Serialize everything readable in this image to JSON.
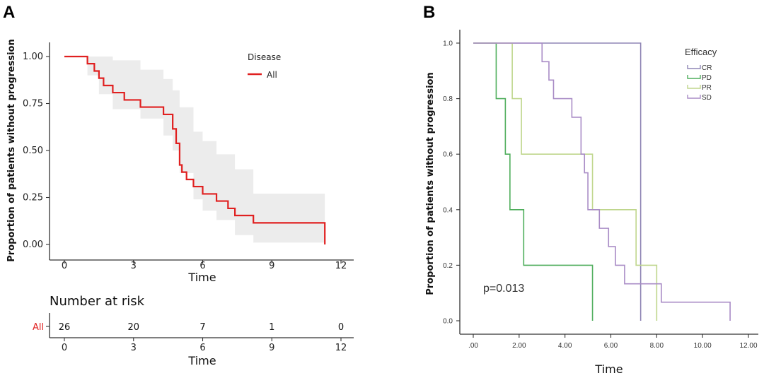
{
  "chart_data": [
    {
      "type": "line",
      "panel_label": "A",
      "xlabel": "Time",
      "ylabel": "Proportion of patients without progression",
      "xticks": [
        0,
        3,
        6,
        9,
        12
      ],
      "yticks": [
        "0.00",
        "0.25",
        "0.50",
        "0.75",
        "1.00"
      ],
      "xlim": [
        0,
        12
      ],
      "ylim": [
        0,
        1
      ],
      "legend": {
        "title": "Disease",
        "placement": "top-right",
        "entries": [
          {
            "name": "All",
            "color": "#e02020"
          }
        ]
      },
      "series": [
        {
          "name": "All",
          "color": "#e02020",
          "step_times": [
            0,
            1.0,
            1.3,
            1.5,
            1.7,
            2.1,
            2.6,
            3.3,
            4.3,
            4.7,
            4.85,
            5.0,
            5.1,
            5.3,
            5.6,
            6.0,
            6.6,
            7.1,
            7.4,
            8.2,
            11.3
          ],
          "survival": [
            1.0,
            0.962,
            0.923,
            0.885,
            0.846,
            0.808,
            0.769,
            0.731,
            0.692,
            0.615,
            0.538,
            0.423,
            0.385,
            0.346,
            0.308,
            0.269,
            0.231,
            0.192,
            0.154,
            0.115,
            0.038
          ],
          "end_time": 11.3,
          "end_value": 0.0,
          "ci_band": {
            "color": "#ececec",
            "times": [
              0,
              1.0,
              1.5,
              2.1,
              3.3,
              4.3,
              4.7,
              5.0,
              5.6,
              6.0,
              6.6,
              7.4,
              8.2,
              11.3
            ],
            "upper": [
              1.0,
              1.0,
              1.0,
              0.98,
              0.93,
              0.88,
              0.82,
              0.73,
              0.6,
              0.55,
              0.48,
              0.4,
              0.27,
              0.27
            ],
            "lower": [
              1.0,
              0.9,
              0.8,
              0.72,
              0.67,
              0.58,
              0.5,
              0.38,
              0.24,
              0.18,
              0.13,
              0.05,
              0.01,
              0.01
            ]
          }
        }
      ],
      "risk_table": {
        "title": "Number at risk",
        "row_label": "All",
        "times": [
          0,
          3,
          6,
          9,
          12
        ],
        "counts": [
          "26",
          "20",
          "7",
          "1",
          "0"
        ],
        "xlabel": "Time"
      }
    },
    {
      "type": "line",
      "panel_label": "B",
      "xlabel": "Time",
      "ylabel": "Proportion of patients without progression",
      "xticks": [
        ".00",
        "2.00",
        "4.00",
        "6.00",
        "8.00",
        "10.00",
        "12.00"
      ],
      "yticks": [
        "0.0",
        "0.2",
        "0.4",
        "0.6",
        "0.8",
        "1.0"
      ],
      "xlim": [
        0,
        12
      ],
      "ylim": [
        0,
        1
      ],
      "annotation": "p=0.013",
      "legend": {
        "title": "Efficacy",
        "placement": "top-right",
        "entries": [
          {
            "name": "CR",
            "color": "#8f86b5"
          },
          {
            "name": "PD",
            "color": "#4fae5c"
          },
          {
            "name": "PR",
            "color": "#bfd68c"
          },
          {
            "name": "SD",
            "color": "#a98cc6"
          }
        ]
      },
      "series": [
        {
          "name": "CR",
          "color": "#8f86b5",
          "step_times": [
            0
          ],
          "survival": [
            1.0
          ],
          "end_time": 7.3,
          "end_value": 0.0
        },
        {
          "name": "PD",
          "color": "#4fae5c",
          "step_times": [
            0,
            1.0,
            1.4,
            1.6,
            2.2,
            5.2
          ],
          "survival": [
            1.0,
            0.8,
            0.6,
            0.4,
            0.2,
            0.0
          ],
          "end_time": 5.2,
          "end_value": 0.0
        },
        {
          "name": "PR",
          "color": "#bfd68c",
          "step_times": [
            0,
            1.7,
            2.1,
            5.2,
            7.1,
            8.0
          ],
          "survival": [
            1.0,
            0.8,
            0.6,
            0.4,
            0.2,
            0.0
          ],
          "end_time": 8.0,
          "end_value": 0.0
        },
        {
          "name": "SD",
          "color": "#a98cc6",
          "step_times": [
            0,
            3.0,
            3.3,
            3.5,
            4.3,
            4.7,
            4.85,
            5.0,
            5.5,
            5.9,
            6.2,
            6.6,
            8.2
          ],
          "survival": [
            1.0,
            0.933,
            0.867,
            0.8,
            0.733,
            0.6,
            0.533,
            0.4,
            0.333,
            0.267,
            0.2,
            0.133,
            0.067
          ],
          "end_time": 11.2,
          "end_value": 0.0
        }
      ]
    }
  ]
}
